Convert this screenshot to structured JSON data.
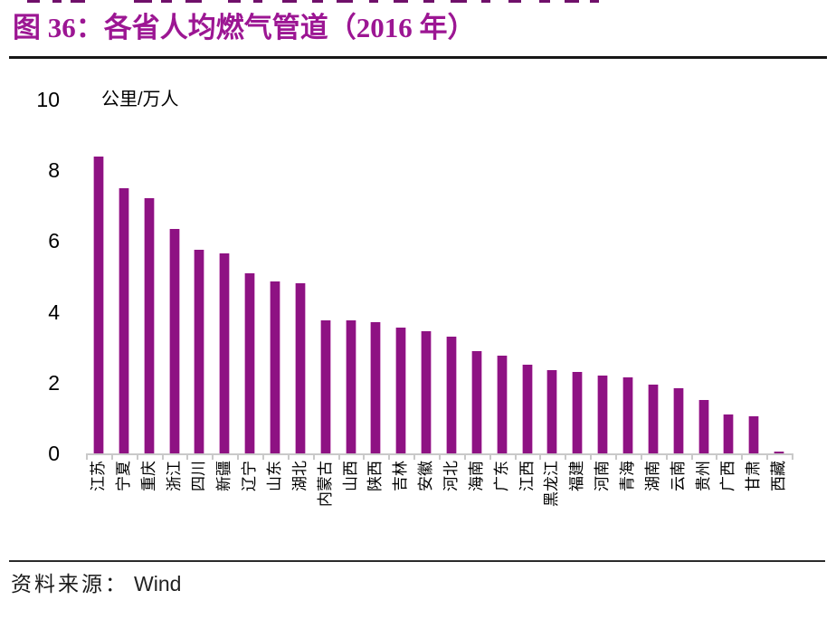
{
  "page": {
    "title": "图 36：各省人均燃气管道（2016 年）",
    "source_label": "资料来源：",
    "source_value": "Wind"
  },
  "chart_data": {
    "type": "bar",
    "title": "各省人均燃气管道（2016 年）",
    "unit_label": "公里/万人",
    "ylabel": "公里/万人",
    "xlabel": "",
    "ylim": [
      0,
      10
    ],
    "yticks": [
      0,
      2,
      4,
      6,
      8,
      10
    ],
    "grid": false,
    "legend": false,
    "bar_color": "#8E1283",
    "axis_color": "#C9C9C9",
    "title_color": "#9C1693",
    "categories": [
      "江苏",
      "宁夏",
      "重庆",
      "浙江",
      "四川",
      "新疆",
      "辽宁",
      "山东",
      "湖北",
      "内蒙古",
      "山西",
      "陕西",
      "吉林",
      "安徽",
      "河北",
      "海南",
      "广东",
      "江西",
      "黑龙江",
      "福建",
      "河南",
      "青海",
      "湖南",
      "云南",
      "贵州",
      "广西",
      "甘肃",
      "西藏"
    ],
    "values": [
      8.4,
      7.5,
      7.2,
      6.35,
      5.75,
      5.65,
      5.1,
      4.85,
      4.8,
      3.75,
      3.75,
      3.7,
      3.55,
      3.45,
      3.3,
      2.9,
      2.75,
      2.5,
      2.35,
      2.3,
      2.2,
      2.15,
      1.95,
      1.85,
      1.5,
      1.1,
      1.05,
      0.05
    ]
  }
}
